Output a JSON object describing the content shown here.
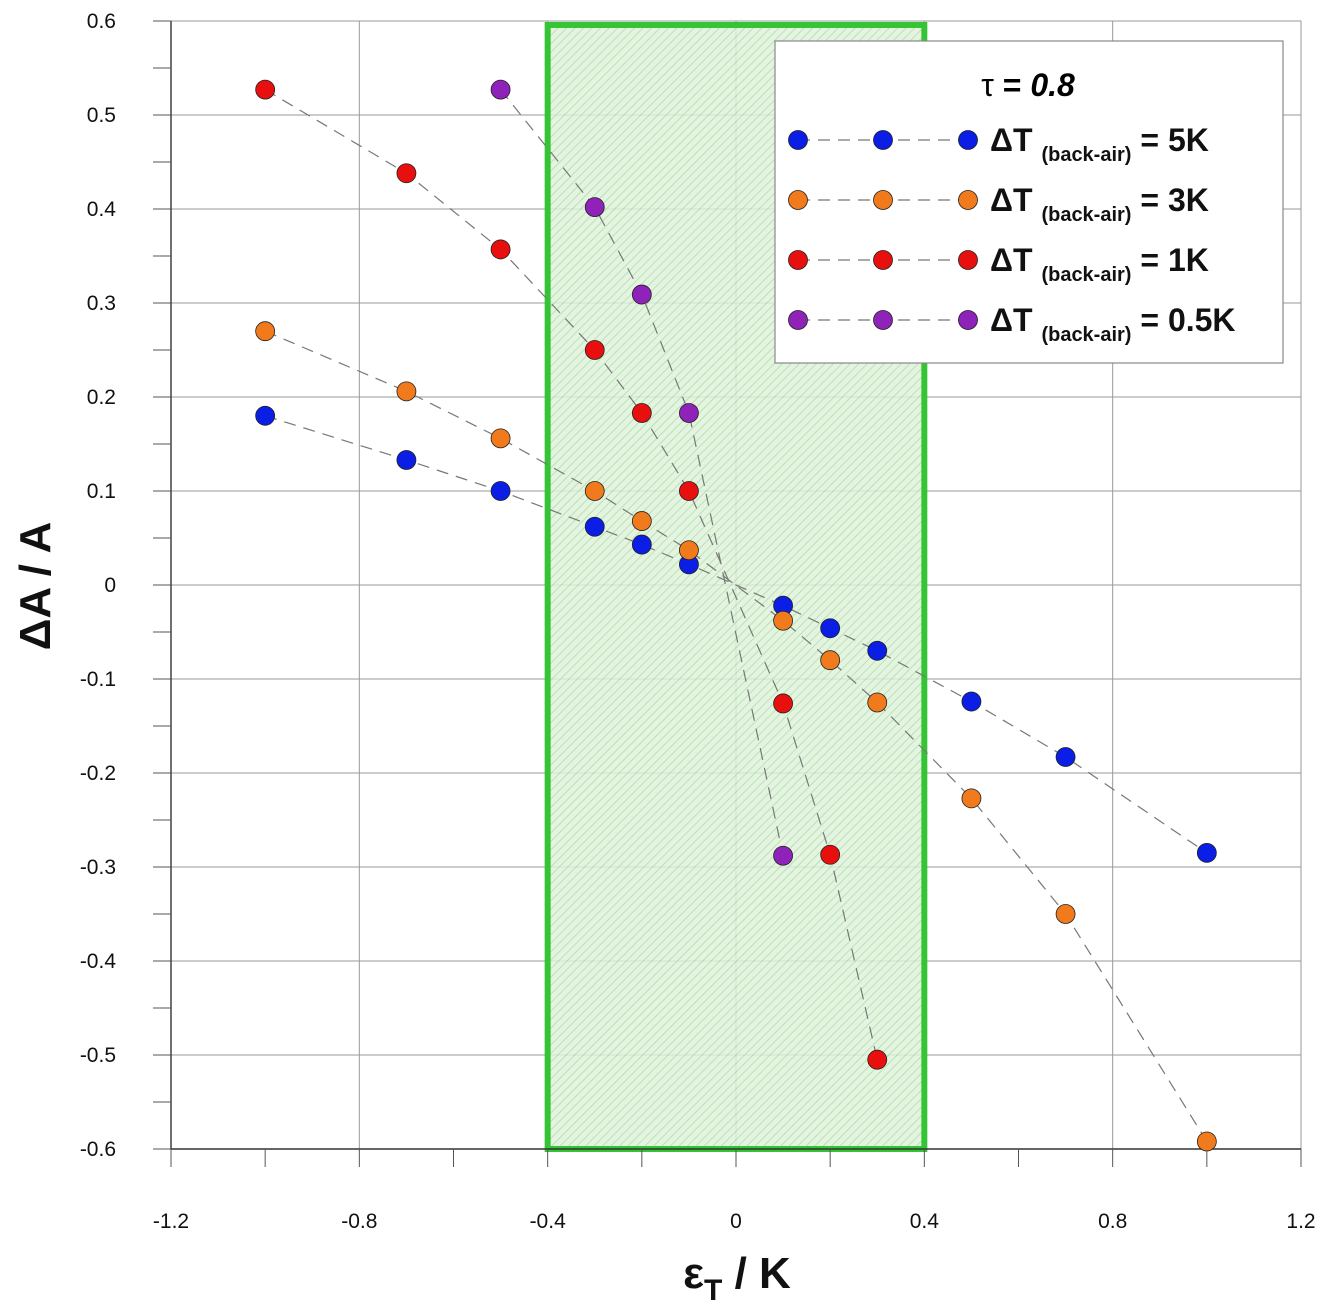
{
  "chart_data": {
    "type": "scatter",
    "xlim": [
      -1.2,
      1.2
    ],
    "ylim": [
      -0.6,
      0.6
    ],
    "x_ticks": [
      "-1.2",
      "-0.8",
      "-0.4",
      "0",
      "0.4",
      "0.8",
      "1.2"
    ],
    "y_ticks": [
      "0.6",
      "0.5",
      "0.4",
      "0.3",
      "0.2",
      "0.1",
      "0",
      "-0.1",
      "-0.2",
      "-0.3",
      "-0.4",
      "-0.5",
      "-0.6"
    ],
    "xlabel": {
      "main": "ε",
      "sub": "T",
      "rest": " / K"
    },
    "ylabel": "ΔA / A",
    "grid": true,
    "highlight_region": {
      "x_range": [
        -0.4,
        0.4
      ],
      "color": "#35c435"
    },
    "legend": {
      "placement": "top-right",
      "title_symbol": "τ",
      "title_rest": " = ",
      "title_value": "0.8"
    },
    "series": [
      {
        "label_prefix": "ΔT ",
        "label_sub": "(back-air)",
        "label_suffix": " = 5K",
        "color": "#0a1ee6",
        "x": [
          -1.0,
          -0.7,
          -0.5,
          -0.3,
          -0.2,
          -0.1,
          0.1,
          0.2,
          0.3,
          0.5,
          0.7,
          1.0
        ],
        "y": [
          0.18,
          0.133,
          0.1,
          0.062,
          0.043,
          0.022,
          -0.022,
          -0.046,
          -0.07,
          -0.124,
          -0.183,
          -0.285
        ]
      },
      {
        "label_prefix": "ΔT ",
        "label_sub": "(back-air)",
        "label_suffix": " = 3K",
        "color": "#f07a1c",
        "x": [
          -1.0,
          -0.7,
          -0.5,
          -0.3,
          -0.2,
          -0.1,
          0.1,
          0.2,
          0.3,
          0.5,
          0.7,
          1.0
        ],
        "y": [
          0.27,
          0.206,
          0.156,
          0.1,
          0.068,
          0.037,
          -0.038,
          -0.08,
          -0.125,
          -0.227,
          -0.35,
          -0.592
        ]
      },
      {
        "label_prefix": "ΔT ",
        "label_sub": "(back-air)",
        "label_suffix": " = 1K",
        "color": "#e8100f",
        "x": [
          -1.0,
          -0.7,
          -0.5,
          -0.3,
          -0.2,
          -0.1,
          0.1,
          0.2,
          0.3
        ],
        "y": [
          0.527,
          0.438,
          0.357,
          0.25,
          0.183,
          0.1,
          -0.126,
          -0.287,
          -0.505
        ]
      },
      {
        "label_prefix": "ΔT ",
        "label_sub": "(back-air)",
        "label_suffix": " = 0.5K",
        "color": "#8f22b8",
        "x": [
          -0.5,
          -0.3,
          -0.2,
          -0.1,
          0.1
        ],
        "y": [
          0.527,
          0.402,
          0.309,
          0.183,
          -0.288
        ]
      }
    ]
  }
}
